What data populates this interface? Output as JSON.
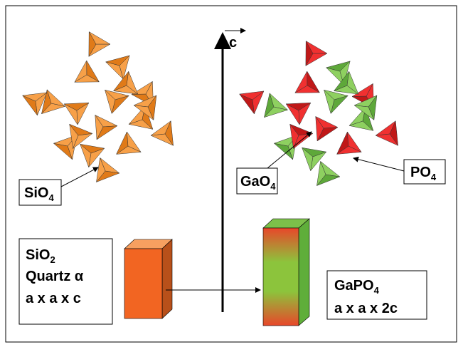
{
  "axis_label": "c",
  "labels": {
    "sio4": {
      "base": "SiO",
      "sub": "4"
    },
    "gao4": {
      "base": "GaO",
      "sub": "4"
    },
    "po4": {
      "base": "PO",
      "sub": "4"
    }
  },
  "left_box": {
    "formula": {
      "base": "SiO",
      "sub": "2"
    },
    "name": "Quartz α",
    "cell": "a x a x c"
  },
  "right_box": {
    "formula": {
      "base": "GaPO",
      "sub": "4"
    },
    "cell": "a x a x 2c"
  }
}
